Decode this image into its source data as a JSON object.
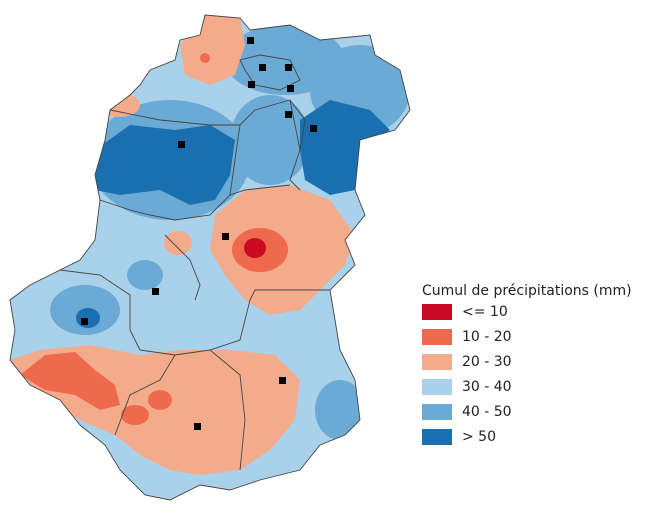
{
  "legend": {
    "title": "Cumul de précipitations (mm)",
    "items": [
      {
        "label": "<= 10",
        "color": "#c80a23"
      },
      {
        "label": "10 - 20",
        "color": "#ef6a4c"
      },
      {
        "label": "20 - 30",
        "color": "#f4ab8c"
      },
      {
        "label": "30 - 40",
        "color": "#a9d1ea"
      },
      {
        "label": "40 - 50",
        "color": "#6aaad5"
      },
      {
        "label": "> 50",
        "color": "#1a6fb0"
      }
    ]
  }
}
